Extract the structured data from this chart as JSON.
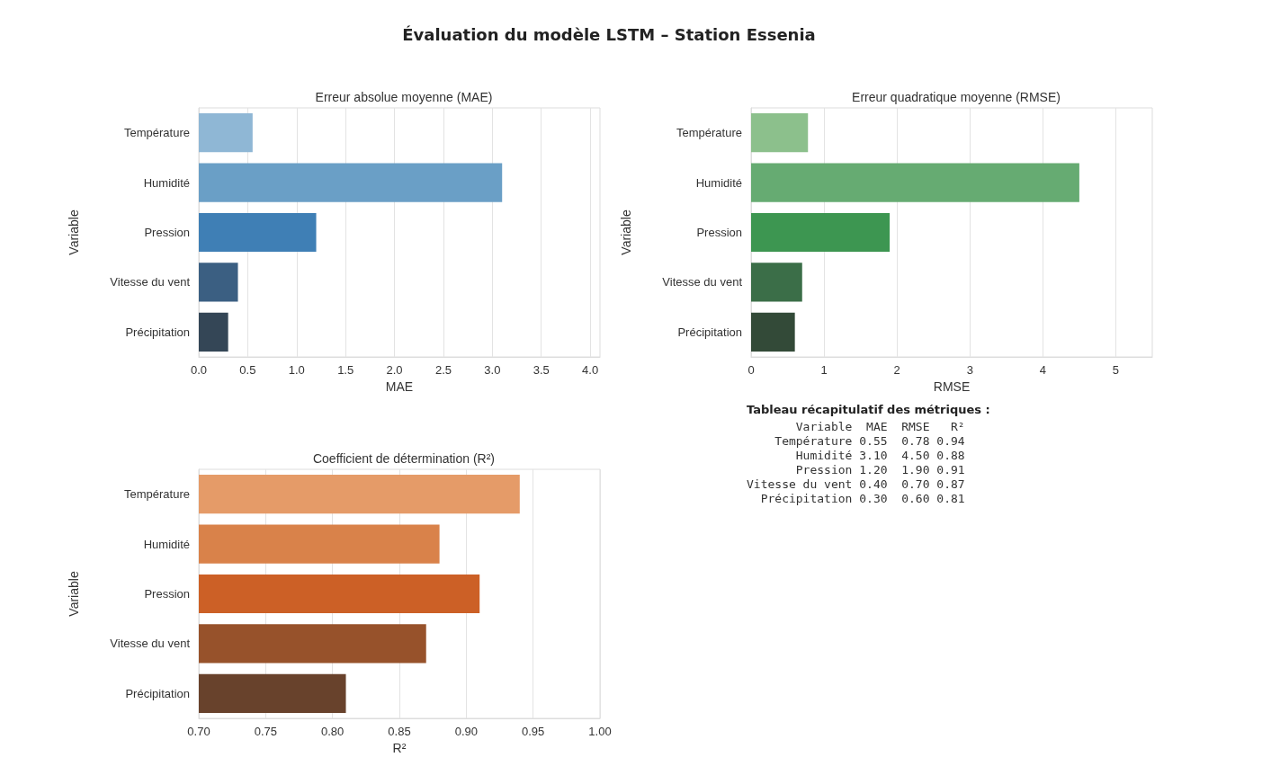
{
  "chart_data": [
    {
      "type": "bar",
      "orientation": "horizontal",
      "title": "Évaluation du modèle LSTM – Station Essenia",
      "subtitle": "Erreur absolue moyenne (MAE)",
      "xlabel": "MAE",
      "ylabel": "Variable",
      "categories": [
        "Température",
        "Humidité",
        "Pression",
        "Vitesse du vent",
        "Précipitation"
      ],
      "values": [
        0.55,
        3.1,
        1.2,
        0.4,
        0.3
      ],
      "colors": [
        "#8fb7d5",
        "#6a9fc6",
        "#3f7fb5",
        "#3b5f82",
        "#344656"
      ],
      "xlim": [
        0,
        4.1
      ],
      "xticks": [
        {
          "value": 0,
          "label": "0.0"
        },
        {
          "value": 0.5,
          "label": "0.5"
        },
        {
          "value": 1,
          "label": "1.0"
        },
        {
          "value": 1.5,
          "label": "1.5"
        },
        {
          "value": 2,
          "label": "2.0"
        },
        {
          "value": 2.5,
          "label": "2.5"
        },
        {
          "value": 3,
          "label": "3.0"
        },
        {
          "value": 3.5,
          "label": "3.5"
        },
        {
          "value": 4,
          "label": "4.0"
        }
      ],
      "grid": "x"
    },
    {
      "type": "bar",
      "orientation": "horizontal",
      "title": "Erreur quadratique moyenne (RMSE)",
      "xlabel": "RMSE",
      "ylabel": "Variable",
      "categories": [
        "Température",
        "Humidité",
        "Pression",
        "Vitesse du vent",
        "Précipitation"
      ],
      "values": [
        0.78,
        4.5,
        1.9,
        0.7,
        0.6
      ],
      "colors": [
        "#8cc08c",
        "#66ab72",
        "#3d9651",
        "#3b6e48",
        "#334a38"
      ],
      "xlim": [
        0,
        5.5
      ],
      "xticks": [
        0,
        1,
        2,
        3,
        4,
        5
      ],
      "grid": "x"
    },
    {
      "type": "bar",
      "orientation": "horizontal",
      "title": "Coefficient de détermination (R²)",
      "xlabel": "R²",
      "ylabel": "Variable",
      "categories": [
        "Température",
        "Humidité",
        "Pression",
        "Vitesse du vent",
        "Précipitation"
      ],
      "values": [
        0.94,
        0.88,
        0.91,
        0.87,
        0.81
      ],
      "colors": [
        "#e59b68",
        "#d9824a",
        "#cc6026",
        "#97522b",
        "#68422c"
      ],
      "xlim": [
        0.7,
        1.0
      ],
      "xticks": [
        {
          "value": 0.7,
          "label": "0.70"
        },
        {
          "value": 0.75,
          "label": "0.75"
        },
        {
          "value": 0.8,
          "label": "0.80"
        },
        {
          "value": 0.85,
          "label": "0.85"
        },
        {
          "value": 0.9,
          "label": "0.90"
        },
        {
          "value": 0.95,
          "label": "0.95"
        },
        {
          "value": 1.0,
          "label": "1.00"
        }
      ],
      "grid": "x"
    },
    {
      "type": "other",
      "title": "Tableau récapitulatif des métriques :",
      "annotations": [
        "       Variable  MAE  RMSE   R²",
        "    Température 0.55  0.78 0.94",
        "       Humidité 3.10  4.50 0.88",
        "       Pression 1.20  1.90 0.91",
        "Vitesse du vent 0.40  0.70 0.87",
        "  Précipitation 0.30  0.60 0.81"
      ]
    }
  ]
}
